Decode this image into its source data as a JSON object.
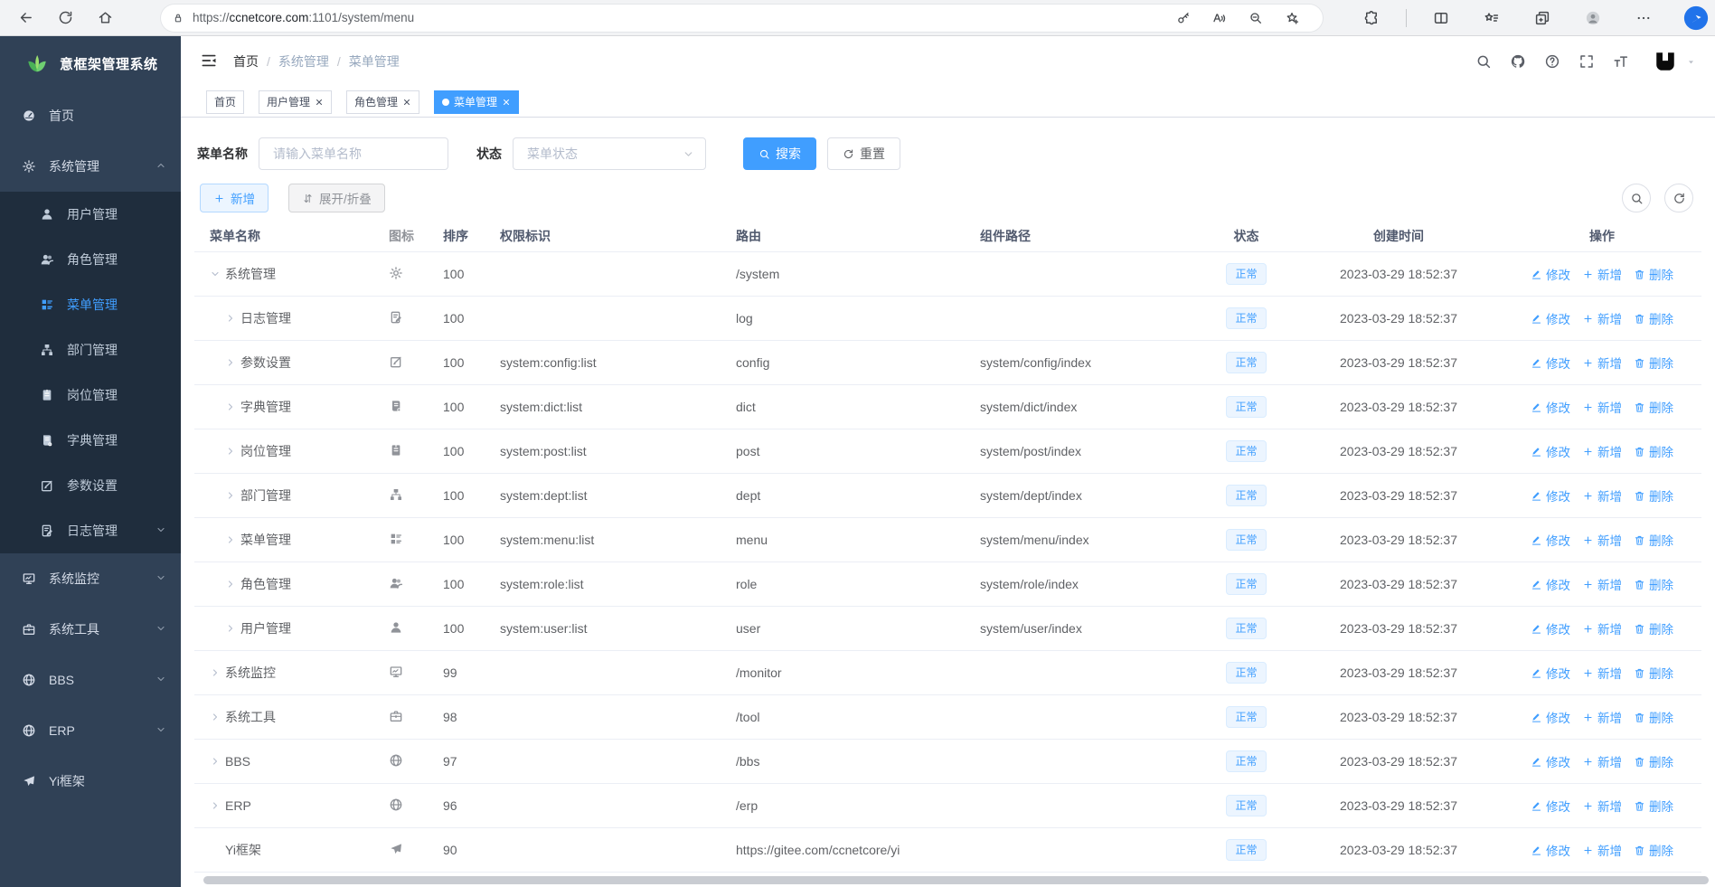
{
  "browser": {
    "url_scheme": "https://",
    "url_domain": "ccnetcore.com",
    "url_rest": ":1101/system/menu",
    "lock_icon": "lock-icon",
    "left_icons": [
      "back-icon",
      "reload-icon",
      "home-icon"
    ],
    "pill_icons": [
      "key-icon",
      "read-aloud-icon",
      "zoom-out-icon",
      "star-add-icon"
    ],
    "right_icons": [
      "extensions-icon",
      "divider",
      "split-screen-icon",
      "favorites-icon",
      "collections-icon",
      "profile-avatar-icon",
      "more-icon"
    ],
    "bing_icon": "bing-icon"
  },
  "sidebar": {
    "logo_title": "意框架管理系统",
    "logo_icon": "leaf-icon",
    "items": [
      {
        "key": "home",
        "label": "首页",
        "icon": "dashboard-icon",
        "type": "top",
        "active": false,
        "caret": null
      },
      {
        "key": "system-mgmt",
        "label": "系统管理",
        "icon": "gear-icon",
        "type": "top",
        "active": false,
        "caret": "up"
      },
      {
        "key": "user-mgmt",
        "label": "用户管理",
        "icon": "user-icon",
        "type": "sub",
        "active": false,
        "caret": null
      },
      {
        "key": "role-mgmt",
        "label": "角色管理",
        "icon": "users-icon",
        "type": "sub",
        "active": false,
        "caret": null
      },
      {
        "key": "menu-mgmt",
        "label": "菜单管理",
        "icon": "menu-list-icon",
        "type": "sub",
        "active": true,
        "caret": null
      },
      {
        "key": "dept-mgmt",
        "label": "部门管理",
        "icon": "org-tree-icon",
        "type": "sub",
        "active": false,
        "caret": null
      },
      {
        "key": "post-mgmt",
        "label": "岗位管理",
        "icon": "badge-icon",
        "type": "sub",
        "active": false,
        "caret": null
      },
      {
        "key": "dict-mgmt",
        "label": "字典管理",
        "icon": "book-icon",
        "type": "sub",
        "active": false,
        "caret": null
      },
      {
        "key": "config",
        "label": "参数设置",
        "icon": "edit-square-icon",
        "type": "sub",
        "active": false,
        "caret": null
      },
      {
        "key": "log-mgmt",
        "label": "日志管理",
        "icon": "log-icon",
        "type": "sub",
        "active": false,
        "caret": "down"
      },
      {
        "key": "monitor",
        "label": "系统监控",
        "icon": "monitor-icon",
        "type": "top",
        "active": false,
        "caret": "down"
      },
      {
        "key": "tool",
        "label": "系统工具",
        "icon": "toolbox-icon",
        "type": "top",
        "active": false,
        "caret": "down"
      },
      {
        "key": "bbs",
        "label": "BBS",
        "icon": "globe-icon",
        "type": "top",
        "active": false,
        "caret": "down"
      },
      {
        "key": "erp",
        "label": "ERP",
        "icon": "globe-icon",
        "type": "top",
        "active": false,
        "caret": "down"
      },
      {
        "key": "yi-frame",
        "label": "Yi框架",
        "icon": "send-icon",
        "type": "top",
        "active": false,
        "caret": null
      }
    ]
  },
  "navbar": {
    "fold_icon": "fold-icon",
    "breadcrumb": [
      {
        "label": "首页"
      },
      {
        "label": "系统管理"
      },
      {
        "label": "菜单管理"
      }
    ],
    "breadcrumb_separator": "/",
    "right_icons": [
      "search-icon",
      "github-icon",
      "help-icon",
      "fullscreen-icon",
      "font-size-icon",
      "yi-logo-avatar",
      "caret-down-icon"
    ]
  },
  "tabs": [
    {
      "key": "home",
      "label": "首页",
      "closable": false,
      "active": false
    },
    {
      "key": "user",
      "label": "用户管理",
      "closable": true,
      "active": false
    },
    {
      "key": "role",
      "label": "角色管理",
      "closable": true,
      "active": false
    },
    {
      "key": "menu",
      "label": "菜单管理",
      "closable": true,
      "active": true
    }
  ],
  "filters": {
    "name_label": "菜单名称",
    "name_placeholder": "请输入菜单名称",
    "name_value": "",
    "status_label": "状态",
    "status_placeholder": "菜单状态",
    "search_label": "搜索",
    "reset_label": "重置"
  },
  "toolbar": {
    "add_label": "新增",
    "expand_label": "展开/折叠",
    "right_icons": [
      "search-icon",
      "refresh-icon"
    ]
  },
  "table": {
    "columns": [
      "菜单名称",
      "图标",
      "排序",
      "权限标识",
      "路由",
      "组件路径",
      "状态",
      "创建时间",
      "操作"
    ],
    "actions": {
      "edit": "修改",
      "add": "新增",
      "delete": "删除"
    },
    "rows": [
      {
        "name": "系统管理",
        "icon": "gear-icon",
        "level": 0,
        "expand": "open",
        "order": "100",
        "perms": "",
        "path": "/system",
        "component": "",
        "status": "正常",
        "time": "2023-03-29 18:52:37"
      },
      {
        "name": "日志管理",
        "icon": "log-icon",
        "level": 1,
        "expand": "closed",
        "order": "100",
        "perms": "",
        "path": "log",
        "component": "",
        "status": "正常",
        "time": "2023-03-29 18:52:37"
      },
      {
        "name": "参数设置",
        "icon": "edit-square-icon",
        "level": 1,
        "expand": "closed",
        "order": "100",
        "perms": "system:config:list",
        "path": "config",
        "component": "system/config/index",
        "status": "正常",
        "time": "2023-03-29 18:52:37"
      },
      {
        "name": "字典管理",
        "icon": "book-icon",
        "level": 1,
        "expand": "closed",
        "order": "100",
        "perms": "system:dict:list",
        "path": "dict",
        "component": "system/dict/index",
        "status": "正常",
        "time": "2023-03-29 18:52:37"
      },
      {
        "name": "岗位管理",
        "icon": "badge-icon",
        "level": 1,
        "expand": "closed",
        "order": "100",
        "perms": "system:post:list",
        "path": "post",
        "component": "system/post/index",
        "status": "正常",
        "time": "2023-03-29 18:52:37"
      },
      {
        "name": "部门管理",
        "icon": "org-tree-icon",
        "level": 1,
        "expand": "closed",
        "order": "100",
        "perms": "system:dept:list",
        "path": "dept",
        "component": "system/dept/index",
        "status": "正常",
        "time": "2023-03-29 18:52:37"
      },
      {
        "name": "菜单管理",
        "icon": "menu-list-icon",
        "level": 1,
        "expand": "closed",
        "order": "100",
        "perms": "system:menu:list",
        "path": "menu",
        "component": "system/menu/index",
        "status": "正常",
        "time": "2023-03-29 18:52:37"
      },
      {
        "name": "角色管理",
        "icon": "users-icon",
        "level": 1,
        "expand": "closed",
        "order": "100",
        "perms": "system:role:list",
        "path": "role",
        "component": "system/role/index",
        "status": "正常",
        "time": "2023-03-29 18:52:37"
      },
      {
        "name": "用户管理",
        "icon": "user-icon",
        "level": 1,
        "expand": "closed",
        "order": "100",
        "perms": "system:user:list",
        "path": "user",
        "component": "system/user/index",
        "status": "正常",
        "time": "2023-03-29 18:52:37"
      },
      {
        "name": "系统监控",
        "icon": "monitor-icon",
        "level": 0,
        "expand": "closed",
        "order": "99",
        "perms": "",
        "path": "/monitor",
        "component": "",
        "status": "正常",
        "time": "2023-03-29 18:52:37"
      },
      {
        "name": "系统工具",
        "icon": "toolbox-icon",
        "level": 0,
        "expand": "closed",
        "order": "98",
        "perms": "",
        "path": "/tool",
        "component": "",
        "status": "正常",
        "time": "2023-03-29 18:52:37"
      },
      {
        "name": "BBS",
        "icon": "globe-icon",
        "level": 0,
        "expand": "closed",
        "order": "97",
        "perms": "",
        "path": "/bbs",
        "component": "",
        "status": "正常",
        "time": "2023-03-29 18:52:37"
      },
      {
        "name": "ERP",
        "icon": "globe-icon",
        "level": 0,
        "expand": "closed",
        "order": "96",
        "perms": "",
        "path": "/erp",
        "component": "",
        "status": "正常",
        "time": "2023-03-29 18:52:37"
      },
      {
        "name": "Yi框架",
        "icon": "send-icon",
        "level": 0,
        "expand": "none",
        "order": "90",
        "perms": "",
        "path": "https://gitee.com/ccnetcore/yi",
        "component": "",
        "status": "正常",
        "time": "2023-03-29 18:52:37"
      }
    ]
  },
  "colors": {
    "primary": "#409eff",
    "sidebar_bg": "#304156",
    "sidebar_submenu_bg": "#1f2d3d",
    "status_badge_bg": "#ecf5ff",
    "status_badge_border": "#d9ecff",
    "tag_active_bg": "#409eff"
  }
}
